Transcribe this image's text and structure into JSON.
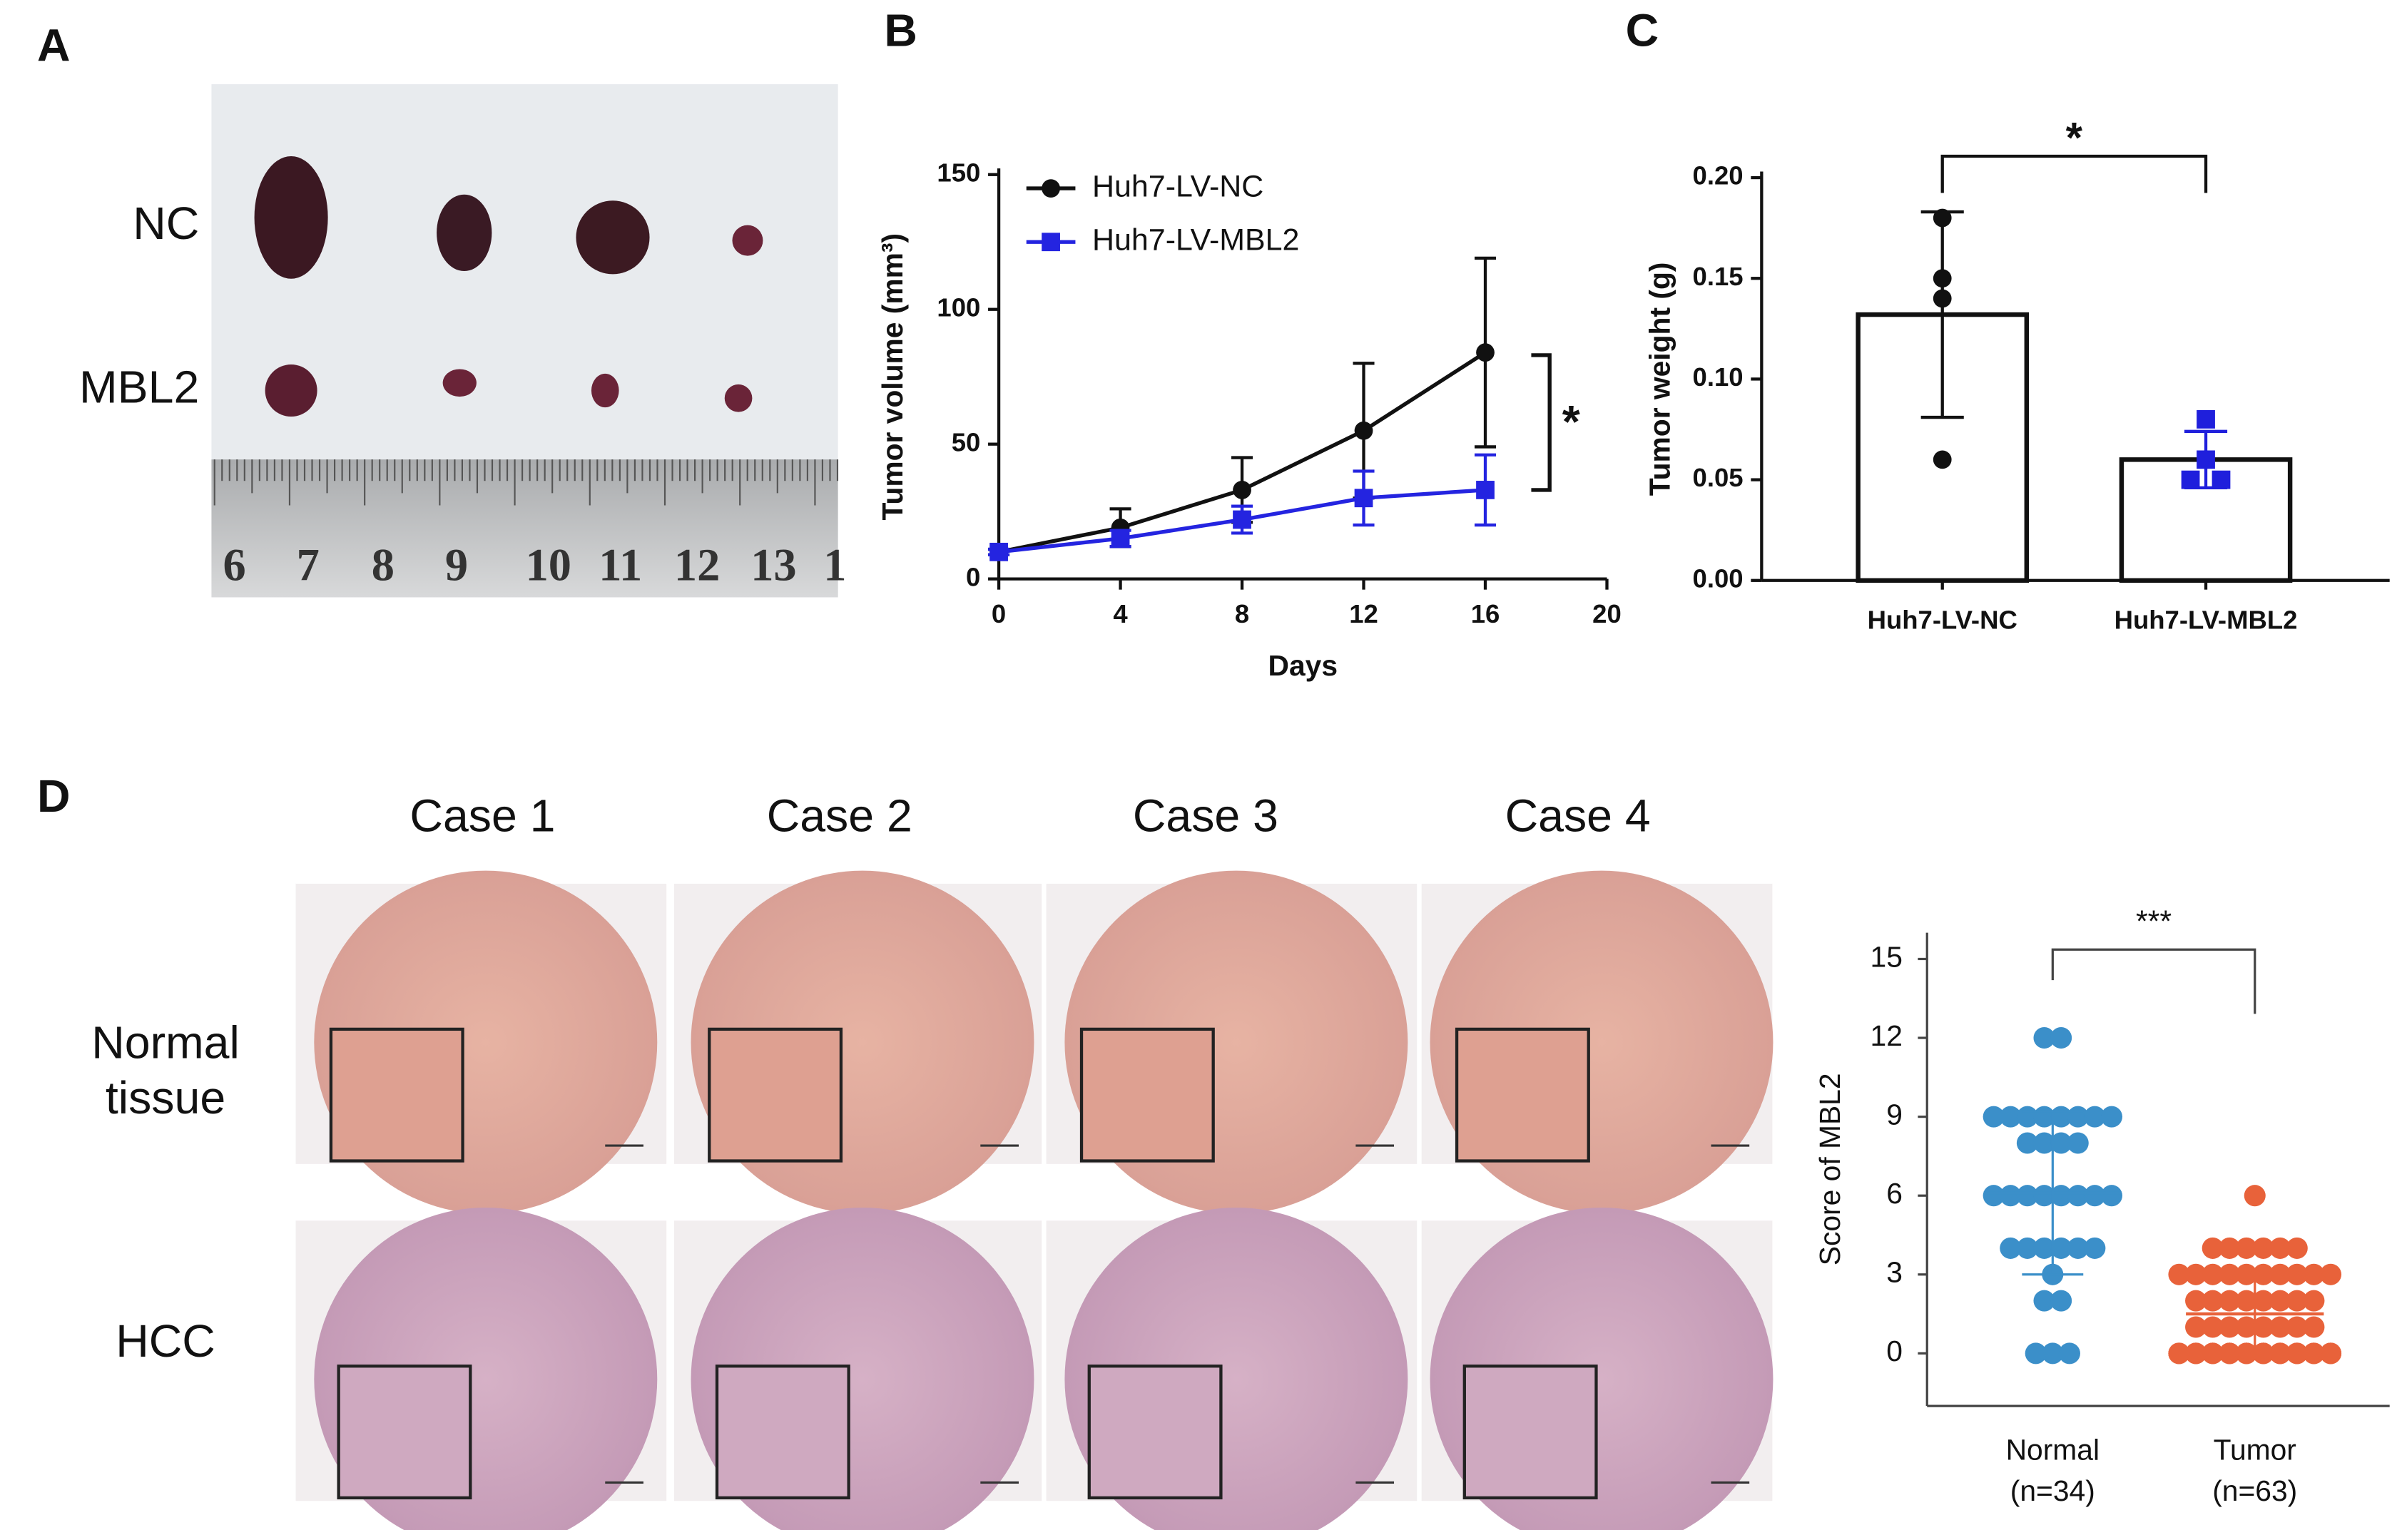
{
  "panel_labels": [
    "A",
    "B",
    "C",
    "D"
  ],
  "photo": {
    "rows": [
      "NC",
      "MBL2"
    ],
    "ruler": [
      "6",
      "7",
      "8",
      "9",
      "10",
      "11",
      "12",
      "13",
      "1"
    ]
  },
  "ihc": {
    "columns": [
      "Case 1",
      "Case 2",
      "Case 3",
      "Case 4"
    ],
    "rows": [
      [
        "Normal",
        "tissue"
      ],
      [
        "HCC"
      ]
    ]
  },
  "chart_data": [
    {
      "type": "line",
      "x": [
        0,
        4,
        8,
        12,
        16
      ],
      "xlim": [
        0,
        20
      ],
      "xticks": [
        0,
        4,
        8,
        12,
        16,
        20
      ],
      "ylim": [
        0,
        150
      ],
      "yticks": [
        0,
        50,
        100,
        150
      ],
      "xlabel": "Days",
      "ylabel": "Tumor volume (mm³)",
      "annotation": "*",
      "series": [
        {
          "name": "Huh7-LV-NC",
          "color": "#111111",
          "values": [
            10,
            19,
            33,
            55,
            84
          ],
          "errors": [
            1,
            7,
            12,
            25,
            35
          ]
        },
        {
          "name": "Huh7-LV-MBL2",
          "color": "#2424e0",
          "values": [
            10,
            15,
            22,
            30,
            33
          ],
          "errors": [
            1,
            3,
            5,
            10,
            13
          ]
        }
      ]
    },
    {
      "type": "bar",
      "categories": [
        "Huh7-LV-NC",
        "Huh7-LV-MBL2"
      ],
      "values": [
        0.132,
        0.06
      ],
      "errors": [
        0.051,
        0.014
      ],
      "points": [
        [
          0.18,
          0.15,
          0.14,
          0.06
        ],
        [
          0.08,
          0.06,
          0.05,
          0.05
        ]
      ],
      "colors": [
        "#111111",
        "#1f1fdc"
      ],
      "ylim": [
        0,
        0.2
      ],
      "yticks": [
        {
          "value": 0,
          "label": "0.00"
        },
        0.05,
        {
          "value": 0.1,
          "label": "0.10"
        },
        0.15,
        {
          "value": 0.2,
          "label": "0.20"
        }
      ],
      "ylabel": "Tumor weight (g)",
      "annotation": "*"
    },
    {
      "type": "scatter",
      "categories": [
        "Normal",
        "Tumor"
      ],
      "n_labels": [
        "(n=34)",
        "(n=63)"
      ],
      "colors": [
        "#3b8fc9",
        "#e8623a"
      ],
      "points": [
        [
          12,
          12,
          9,
          9,
          9,
          9,
          9,
          9,
          9,
          9,
          8,
          8,
          8,
          8,
          6,
          6,
          6,
          6,
          6,
          6,
          6,
          6,
          4,
          4,
          4,
          4,
          4,
          4,
          3,
          2,
          2,
          0,
          0,
          0
        ],
        [
          6,
          4,
          4,
          4,
          4,
          4,
          4,
          3,
          3,
          3,
          3,
          3,
          3,
          3,
          3,
          3,
          3,
          2,
          2,
          2,
          2,
          2,
          2,
          2,
          2,
          1,
          1,
          1,
          1,
          1,
          1,
          1,
          1,
          0,
          0,
          0,
          0,
          0,
          0,
          0,
          0,
          0,
          0,
          0,
          0,
          0,
          0,
          0,
          0,
          0,
          0,
          0,
          0,
          0,
          0,
          0,
          0,
          0,
          0,
          0,
          0,
          0,
          0
        ]
      ],
      "means": [
        6.1,
        1.5
      ],
      "sds": [
        3.1,
        1.6
      ],
      "ylim": [
        -2,
        16
      ],
      "yticks": [
        0,
        3,
        6,
        9,
        12,
        15
      ],
      "ylabel": "Score of MBL2",
      "annotation": "***"
    }
  ]
}
